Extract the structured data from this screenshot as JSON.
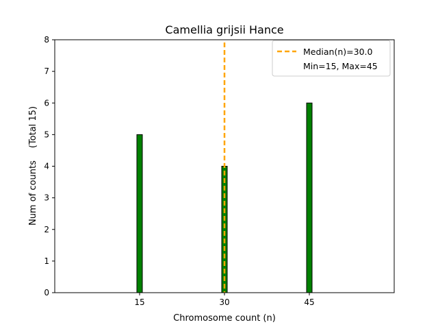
{
  "chart_data": {
    "type": "bar",
    "title": "Camellia grijsii Hance",
    "xlabel": "Chromosome count (n)",
    "ylabel": "Num of counts",
    "ylabel_total": "(Total 15)",
    "categories": [
      15,
      30,
      45
    ],
    "values": [
      5,
      4,
      6
    ],
    "xlim": [
      0,
      60
    ],
    "ylim": [
      0,
      8
    ],
    "xticks": [
      15,
      30,
      45
    ],
    "yticks": [
      0,
      1,
      2,
      3,
      4,
      5,
      6,
      7,
      8
    ],
    "grid": false,
    "median": 30.0,
    "legend": {
      "placement": "top-right",
      "entries": [
        "Median(n)=30.0",
        "Min=15, Max=45"
      ]
    },
    "colors": {
      "bar": "#008000",
      "bar_edge": "#000000",
      "median_line": "#FFA500"
    }
  }
}
